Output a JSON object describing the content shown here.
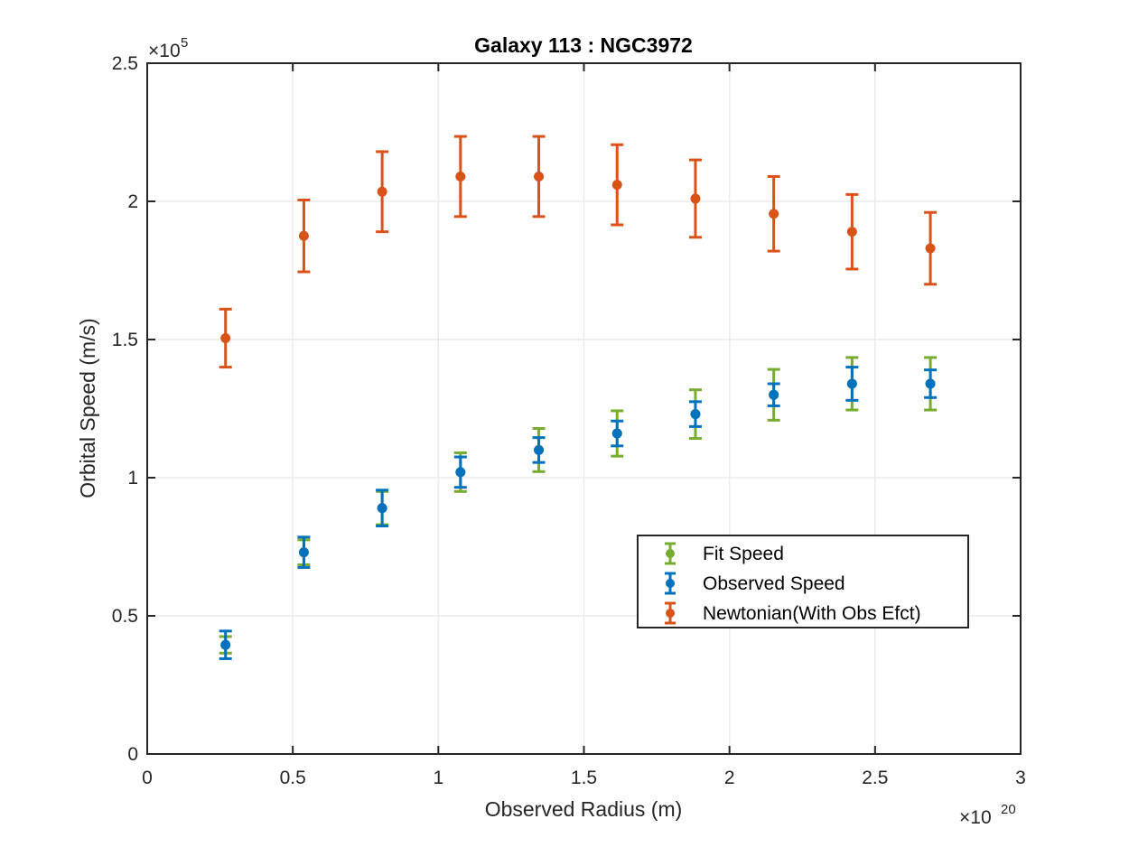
{
  "chart_data": {
    "type": "scatter",
    "title": "Galaxy 113 : NGC3972",
    "xlabel": "Observed Radius (m)",
    "ylabel": "Orbital Speed (m/s)",
    "x_multiplier": {
      "base": "×10",
      "exp": "20"
    },
    "y_multiplier": {
      "base": "×10",
      "exp": "5"
    },
    "xlim": [
      0,
      3e+20
    ],
    "ylim": [
      0,
      250000
    ],
    "x_ticks": [
      0,
      5e+19,
      1e+20,
      1.5e+20,
      2e+20,
      2.5e+20,
      3e+20
    ],
    "x_tick_labels": [
      "0",
      "0.5",
      "1",
      "1.5",
      "2",
      "2.5",
      "3"
    ],
    "y_ticks": [
      0,
      50000,
      100000,
      150000,
      200000,
      250000
    ],
    "y_tick_labels": [
      "0",
      "0.5",
      "1",
      "1.5",
      "2",
      "2.5"
    ],
    "grid": true,
    "legend_position": "center-right",
    "x": [
      2.69e+19,
      5.38e+19,
      8.07e+19,
      1.076e+20,
      1.345e+20,
      1.614e+20,
      1.883e+20,
      2.152e+20,
      2.421e+20,
      2.69e+20
    ],
    "series": [
      {
        "name": "Fit Speed",
        "color": "#77AC30",
        "y": [
          39500,
          73000,
          89000,
          102000,
          110000,
          116000,
          123000,
          130000,
          134000,
          134000
        ],
        "err": [
          3000,
          4500,
          6000,
          7000,
          7800,
          8200,
          8800,
          9200,
          9500,
          9500
        ]
      },
      {
        "name": "Observed Speed",
        "color": "#0072BD",
        "y": [
          39500,
          73000,
          89000,
          102000,
          110000,
          116000,
          123000,
          130000,
          134000,
          134000
        ],
        "err": [
          5000,
          5500,
          6500,
          5500,
          4500,
          4500,
          4500,
          4000,
          6000,
          5000
        ]
      },
      {
        "name": "Newtonian(With Obs Efct)",
        "color": "#D95319",
        "y": [
          150500,
          187500,
          203500,
          209000,
          209000,
          206000,
          201000,
          195500,
          189000,
          183000
        ],
        "err": [
          10500,
          13000,
          14500,
          14500,
          14500,
          14500,
          14000,
          13500,
          13500,
          13000
        ]
      }
    ]
  }
}
